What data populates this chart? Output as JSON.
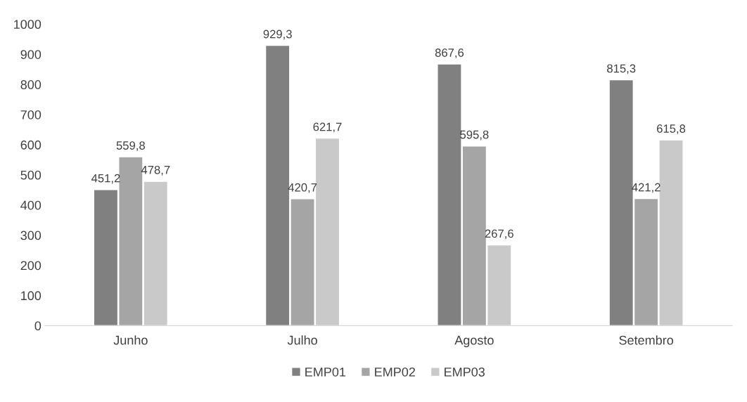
{
  "chart_data": {
    "type": "bar",
    "categories": [
      "Junho",
      "Julho",
      "Agosto",
      "Setembro"
    ],
    "series": [
      {
        "name": "EMP01",
        "color": "#808080",
        "values": [
          451.2,
          929.3,
          867.6,
          815.3
        ],
        "value_labels": [
          "451,2",
          "929,3",
          "867,6",
          "815,3"
        ]
      },
      {
        "name": "EMP02",
        "color": "#a5a5a5",
        "values": [
          559.8,
          420.7,
          595.8,
          421.2
        ],
        "value_labels": [
          "559,8",
          "420,7",
          "595,8",
          "421,2"
        ]
      },
      {
        "name": "EMP03",
        "color": "#c9c9c9",
        "values": [
          478.7,
          621.7,
          267.6,
          615.8
        ],
        "value_labels": [
          "478,7",
          "621,7",
          "267,6",
          "615,8"
        ]
      }
    ],
    "ylim": [
      0,
      1000
    ],
    "yticks": [
      0,
      100,
      200,
      300,
      400,
      500,
      600,
      700,
      800,
      900,
      1000
    ],
    "grid": false,
    "legend": "bottom"
  }
}
